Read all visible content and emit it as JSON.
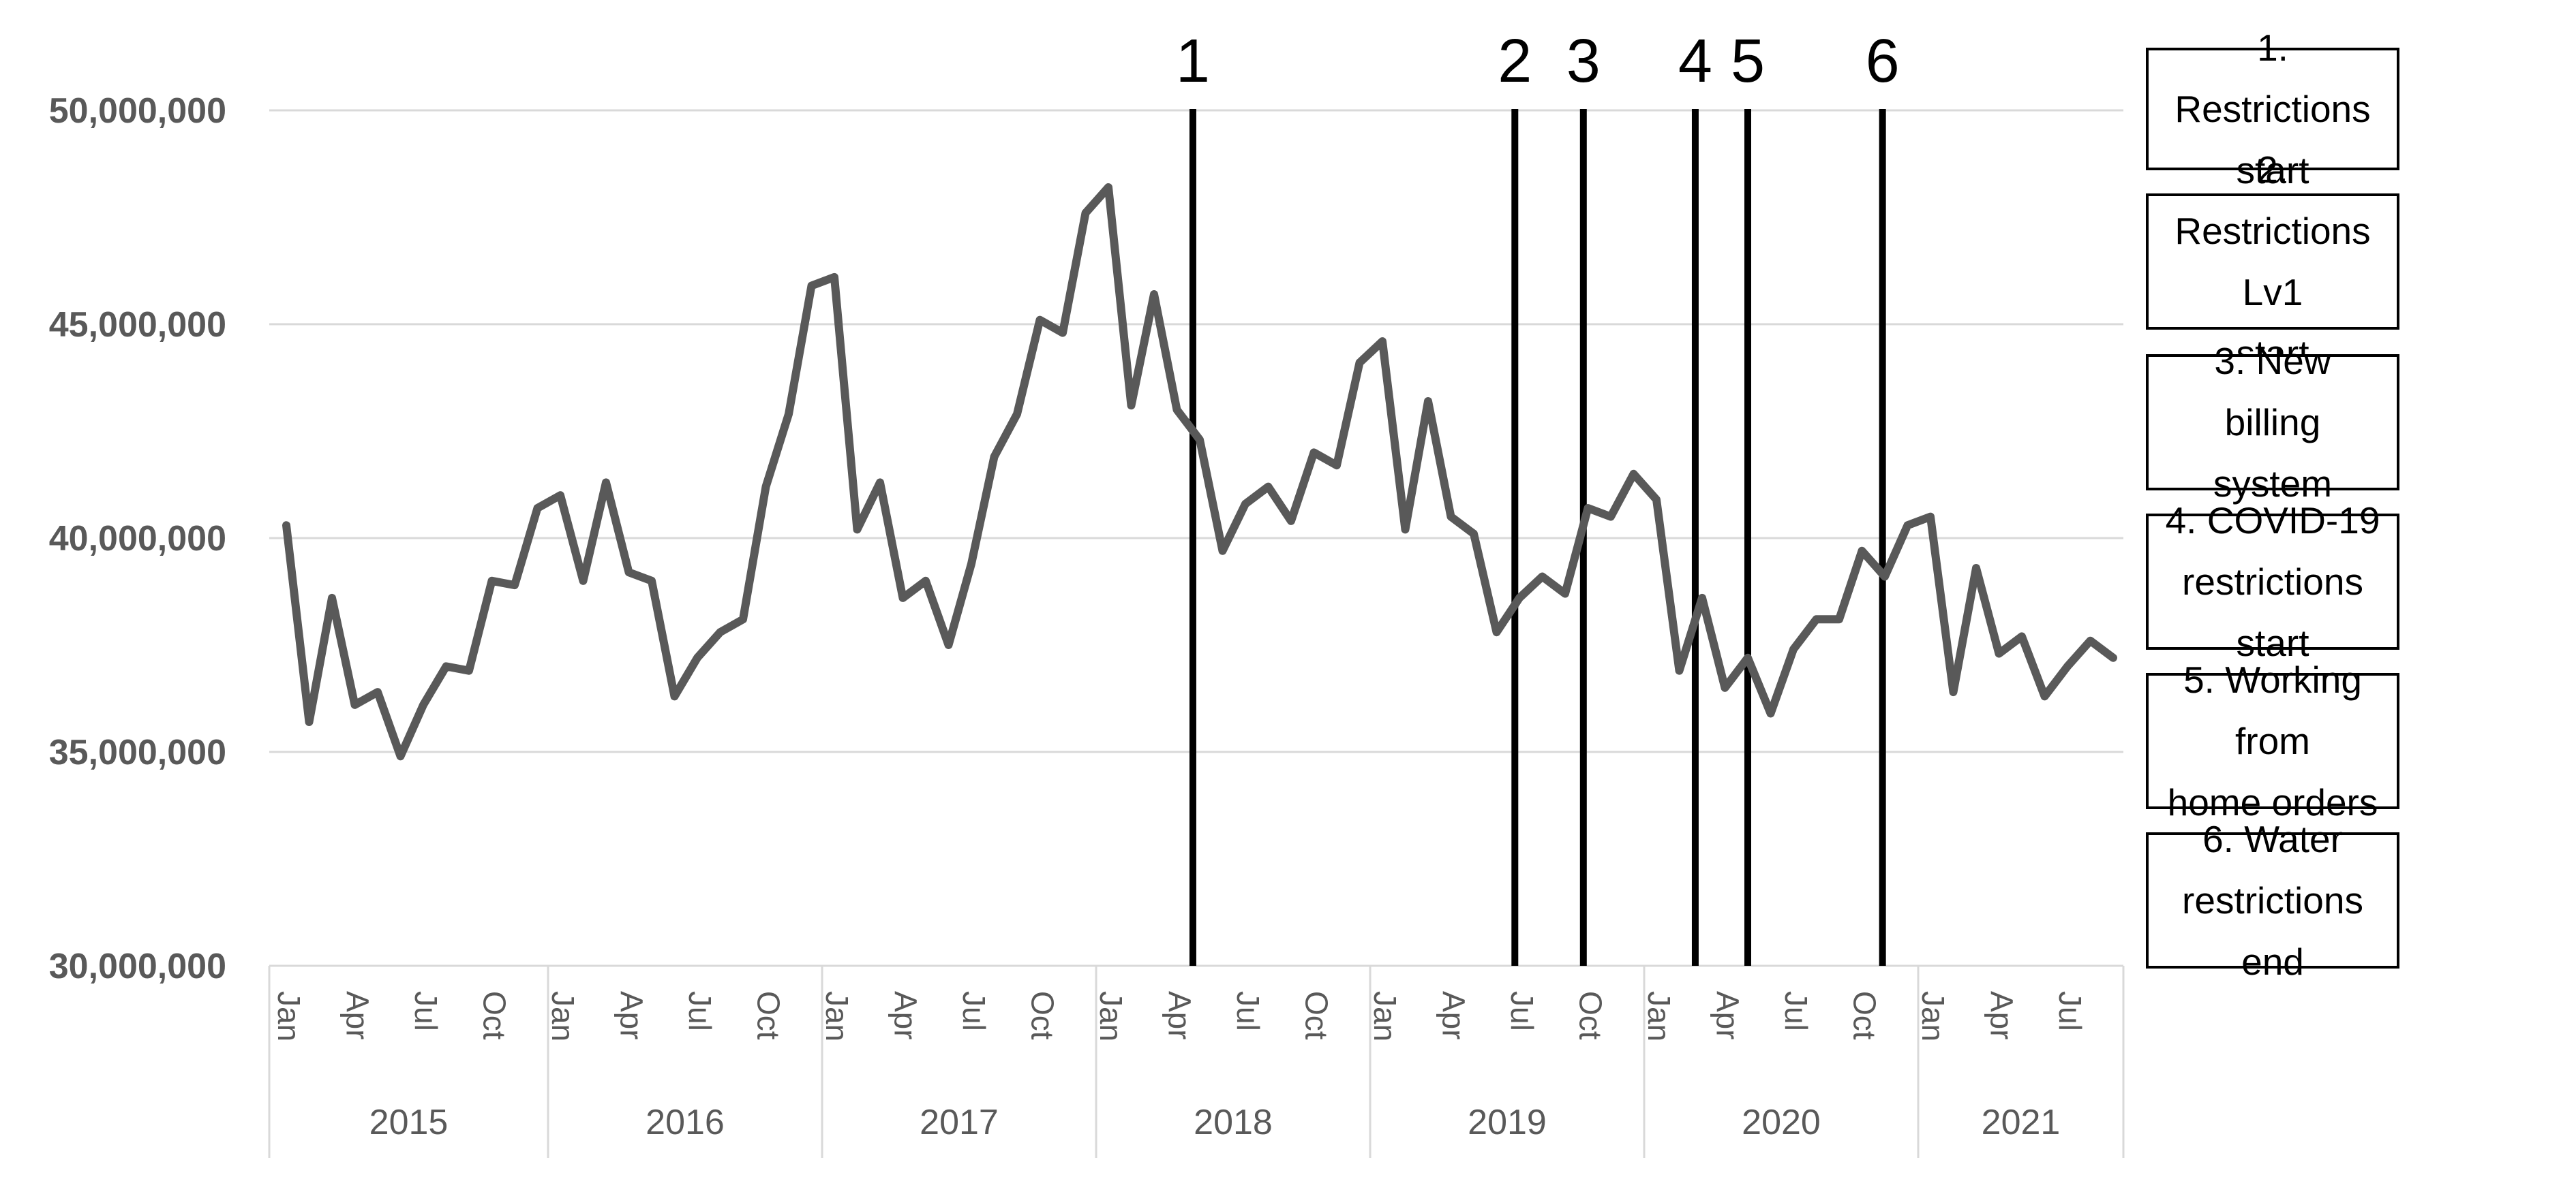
{
  "chart_data": {
    "type": "line",
    "title": "",
    "xlabel": "",
    "ylabel": "",
    "ylim": [
      30000000,
      50000000
    ],
    "yticks": [
      "30,000,000",
      "35,000,000",
      "40,000,000",
      "45,000,000",
      "50,000,000"
    ],
    "grid": "horizontal",
    "month_tick_labels": [
      "Jan",
      "Apr",
      "Jul",
      "Oct"
    ],
    "years": [
      "2015",
      "2016",
      "2017",
      "2018",
      "2019",
      "2020",
      "2021"
    ],
    "series": [
      {
        "values": [
          40300000,
          35700000,
          38600000,
          36100000,
          36400000,
          34900000,
          36100000,
          37000000,
          36900000,
          39000000,
          38900000,
          40700000,
          41000000,
          39000000,
          41300000,
          39200000,
          39000000,
          36300000,
          37200000,
          37800000,
          38100000,
          41200000,
          42900000,
          45900000,
          46100000,
          40200000,
          41300000,
          38600000,
          39000000,
          37500000,
          39400000,
          41900000,
          42900000,
          45100000,
          44800000,
          47600000,
          48200000,
          43100000,
          45700000,
          43000000,
          42300000,
          39700000,
          40800000,
          41200000,
          40400000,
          42000000,
          41700000,
          44100000,
          44600000,
          40200000,
          43200000,
          40500000,
          40100000,
          37800000,
          38600000,
          39100000,
          38700000,
          40700000,
          40500000,
          41500000,
          40900000,
          36900000,
          38600000,
          36500000,
          37200000,
          35900000,
          37400000,
          38100000,
          38100000,
          39700000,
          39100000,
          40300000,
          40500000,
          36400000,
          39300000,
          37300000,
          37700000,
          36300000,
          37000000,
          37600000,
          37200000
        ]
      }
    ],
    "events": [
      {
        "number": "1",
        "month_index": 39.7
      },
      {
        "number": "2",
        "month_index": 53.8
      },
      {
        "number": "3",
        "month_index": 56.8
      },
      {
        "number": "4",
        "month_index": 61.7
      },
      {
        "number": "5",
        "month_index": 64.0
      },
      {
        "number": "6",
        "month_index": 69.9
      }
    ],
    "legend_position": "right",
    "legend": [
      {
        "line1": "1. Restrictions",
        "line2": "start"
      },
      {
        "line1": "2. Restrictions Lv1",
        "line2": "start"
      },
      {
        "line1": "3. New billing",
        "line2": "system"
      },
      {
        "line1": "4. COVID-19",
        "line2": "restrictions start"
      },
      {
        "line1": "5. Working from",
        "line2": "home orders"
      },
      {
        "line1": "6. Water",
        "line2": "restrictions end"
      }
    ]
  },
  "colors": {
    "line": "#595959",
    "grid": "#d9d9d9",
    "event_line": "#000000",
    "axis_text": "#595959"
  }
}
